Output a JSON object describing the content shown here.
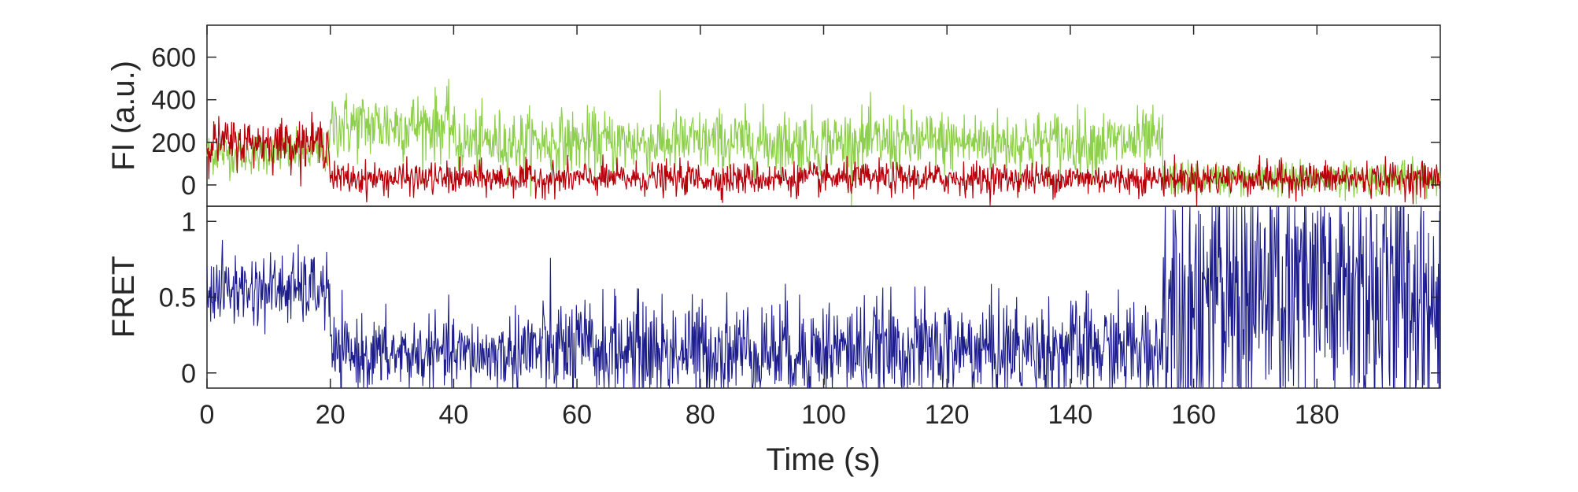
{
  "chart_data": [
    {
      "type": "line",
      "ylabel": "FI (a.u.)",
      "xlim": [
        0,
        200
      ],
      "ylim": [
        -100,
        750
      ],
      "yticks": [
        0,
        200,
        400,
        600
      ],
      "grid": false,
      "colors": {
        "donor": "#8ed04b",
        "acceptor": "#b8000b"
      },
      "series": [
        {
          "color_key": "donor",
          "segments": [
            {
              "x": [
                0,
                10,
                20
              ],
              "mean": 150,
              "noise": 50
            },
            {
              "x": [
                20,
                40
              ],
              "mean": 280,
              "noise": 80
            },
            {
              "x": [
                40,
                155
              ],
              "mean": 200,
              "noise": 75
            },
            {
              "x": [
                155,
                200
              ],
              "mean": 30,
              "noise": 40
            }
          ]
        },
        {
          "color_key": "acceptor",
          "segments": [
            {
              "x": [
                0,
                20
              ],
              "mean": 200,
              "noise": 55
            },
            {
              "x": [
                20,
                155
              ],
              "mean": 30,
              "noise": 38
            },
            {
              "x": [
                155,
                200
              ],
              "mean": 30,
              "noise": 40
            }
          ]
        }
      ]
    },
    {
      "type": "line",
      "ylabel": "FRET",
      "xlabel": "Time (s)",
      "xlim": [
        0,
        200
      ],
      "ylim": [
        -0.1,
        1.1
      ],
      "yticks": [
        0,
        0.5,
        1
      ],
      "xticks": [
        0,
        20,
        40,
        60,
        80,
        100,
        120,
        140,
        160,
        180
      ],
      "grid": false,
      "color": "#1c1c8c",
      "segments": [
        {
          "x": [
            0,
            20
          ],
          "mean": 0.55,
          "noise": 0.12
        },
        {
          "x": [
            20,
            50
          ],
          "mean": 0.12,
          "noise": 0.12
        },
        {
          "x": [
            50,
            155
          ],
          "mean": 0.15,
          "noise": 0.17
        },
        {
          "x": [
            155,
            200
          ],
          "mean": 0.5,
          "noise": 0.5
        }
      ]
    }
  ]
}
